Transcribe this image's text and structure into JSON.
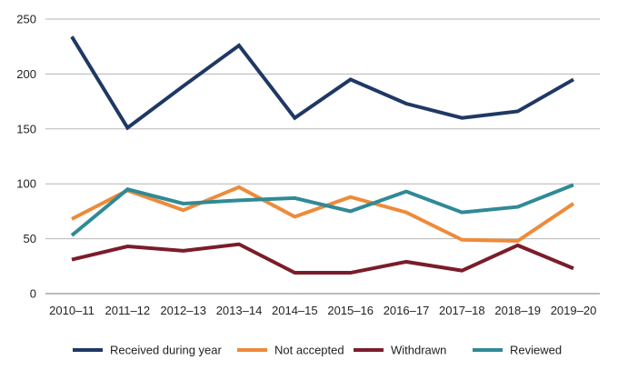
{
  "chart_data": {
    "type": "line",
    "categories": [
      "2010–11",
      "2011–12",
      "2012–13",
      "2013–14",
      "2014–15",
      "2015–16",
      "2016–17",
      "2017–18",
      "2018–19",
      "2019–20"
    ],
    "ylim": [
      0,
      250
    ],
    "yticks": [
      0,
      50,
      100,
      150,
      200,
      250
    ],
    "grid": true,
    "legend": "bottom",
    "series": [
      {
        "name": "Received during year",
        "color": "#1f3864",
        "values": [
          234,
          151,
          189,
          226,
          160,
          195,
          173,
          160,
          166,
          195
        ]
      },
      {
        "name": "Not accepted",
        "color": "#ed8b3a",
        "values": [
          68,
          94,
          76,
          97,
          70,
          88,
          74,
          49,
          48,
          82
        ]
      },
      {
        "name": "Withdrawn",
        "color": "#7b1c2a",
        "values": [
          31,
          43,
          39,
          45,
          19,
          19,
          29,
          21,
          44,
          23
        ]
      },
      {
        "name": "Reviewed",
        "color": "#2f8a96",
        "values": [
          53,
          95,
          82,
          85,
          87,
          75,
          93,
          74,
          79,
          99
        ]
      }
    ]
  }
}
